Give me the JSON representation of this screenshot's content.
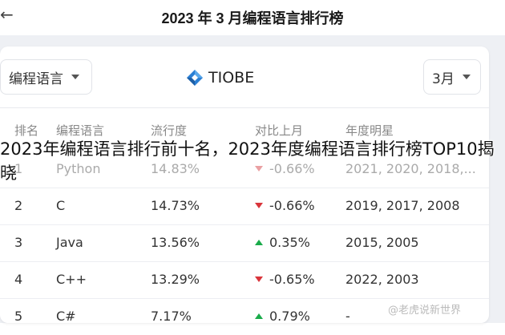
{
  "header": {
    "title": "2023 年 3 月编程语言排行榜",
    "back_icon": "←"
  },
  "toolbar": {
    "language_select": "编程语言",
    "logo_text": "TIOBE",
    "month_select": "3月"
  },
  "table": {
    "columns": [
      "排名",
      "编程语言",
      "流行度",
      "对比上月",
      "年度明星"
    ],
    "rows": [
      {
        "rank": "1",
        "language": "Python",
        "popularity": "14.83%",
        "trend": "down",
        "change": "-0.66%",
        "stars": "2021, 2020, 2018,..."
      },
      {
        "rank": "2",
        "language": "C",
        "popularity": "14.73%",
        "trend": "down",
        "change": "-0.66%",
        "stars": "2019, 2017, 2008"
      },
      {
        "rank": "3",
        "language": "Java",
        "popularity": "13.56%",
        "trend": "up",
        "change": "0.35%",
        "stars": "2015, 2005"
      },
      {
        "rank": "4",
        "language": "C++",
        "popularity": "13.29%",
        "trend": "down",
        "change": "-0.65%",
        "stars": "2022, 2003"
      },
      {
        "rank": "5",
        "language": "C#",
        "popularity": "7.17%",
        "trend": "up",
        "change": "0.79%",
        "stars": "-"
      }
    ]
  },
  "overlay_caption": "2023年编程语言排行前十名，2023年度编程语言排行榜TOP10揭晓",
  "watermark": "@老虎说新世界",
  "colors": {
    "up": "#1aab4a",
    "down": "#d9353b",
    "background": "#eef0f4"
  }
}
